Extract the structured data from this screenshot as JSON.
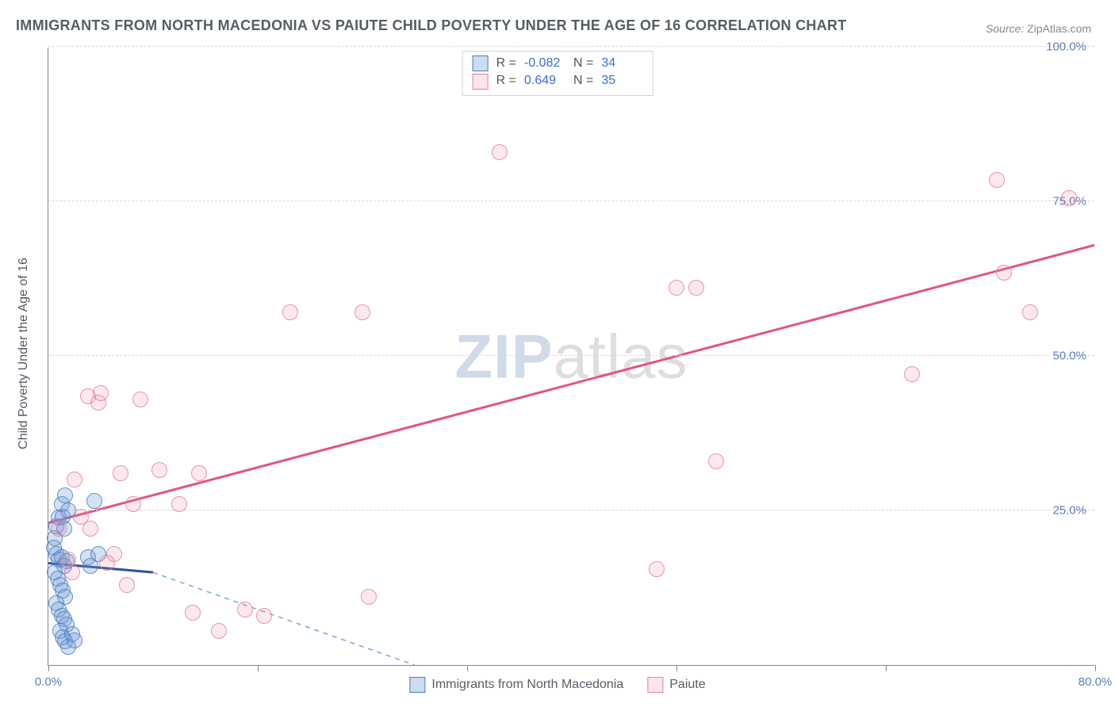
{
  "title": "IMMIGRANTS FROM NORTH MACEDONIA VS PAIUTE CHILD POVERTY UNDER THE AGE OF 16 CORRELATION CHART",
  "source": {
    "label": "Source:",
    "value": "ZipAtlas.com"
  },
  "watermark": {
    "part1": "ZIP",
    "part2": "atlas"
  },
  "y_axis_label": "Child Poverty Under the Age of 16",
  "chart": {
    "type": "scatter",
    "xlim": [
      0,
      80
    ],
    "ylim": [
      0,
      100
    ],
    "x_ticks": [
      0,
      16,
      32,
      48,
      64,
      80
    ],
    "x_tick_labels": {
      "0": "0.0%",
      "80": "80.0%"
    },
    "y_ticks": [
      25,
      50,
      75,
      100
    ],
    "y_tick_labels": {
      "25": "25.0%",
      "50": "50.0%",
      "75": "75.0%",
      "100": "100.0%"
    },
    "grid_color": "#d6d9de",
    "background_color": "#ffffff",
    "axis_color": "#888888",
    "tick_label_color": "#5b7fb8",
    "marker_radius": 10,
    "series": [
      {
        "name": "Immigrants from North Macedonia",
        "key": "blue",
        "R": "-0.082",
        "N": "34",
        "marker_fill": "rgba(108,155,214,0.35)",
        "marker_stroke": "#4e7cc0",
        "trend": {
          "x1": 0,
          "y1": 16.5,
          "x2": 8,
          "y2": 15.0,
          "solid_color": "#2b53a0",
          "solid_width": 3,
          "dash_x2": 28,
          "dash_y2": 0,
          "dash_color": "#7fa3d6",
          "dash_width": 1.5
        },
        "points": [
          [
            0.6,
            22.5
          ],
          [
            0.8,
            23.8
          ],
          [
            1.0,
            26.0
          ],
          [
            1.1,
            24.0
          ],
          [
            1.3,
            27.5
          ],
          [
            1.5,
            25.0
          ],
          [
            1.2,
            22.0
          ],
          [
            0.5,
            20.5
          ],
          [
            0.4,
            19.0
          ],
          [
            0.6,
            18.0
          ],
          [
            0.8,
            17.0
          ],
          [
            1.0,
            17.5
          ],
          [
            1.2,
            16.0
          ],
          [
            1.4,
            16.8
          ],
          [
            0.5,
            15.0
          ],
          [
            0.7,
            14.0
          ],
          [
            0.9,
            13.0
          ],
          [
            1.1,
            12.0
          ],
          [
            1.3,
            11.0
          ],
          [
            0.6,
            10.0
          ],
          [
            0.8,
            9.0
          ],
          [
            1.0,
            8.0
          ],
          [
            1.2,
            7.5
          ],
          [
            1.4,
            6.5
          ],
          [
            0.9,
            5.5
          ],
          [
            1.1,
            4.5
          ],
          [
            1.3,
            3.8
          ],
          [
            1.5,
            3.0
          ],
          [
            1.8,
            5.0
          ],
          [
            2.0,
            4.0
          ],
          [
            3.0,
            17.5
          ],
          [
            3.2,
            16.0
          ],
          [
            3.8,
            18.0
          ],
          [
            3.5,
            26.5
          ]
        ]
      },
      {
        "name": "Paiute",
        "key": "pink",
        "R": "0.649",
        "N": "35",
        "marker_fill": "rgba(236,130,160,0.22)",
        "marker_stroke": "#e2839f",
        "trend": {
          "x1": 0,
          "y1": 23.0,
          "x2": 80,
          "y2": 68.0,
          "solid_color": "#e0567e",
          "solid_width": 3
        },
        "points": [
          [
            0.8,
            22.0
          ],
          [
            1.5,
            17.0
          ],
          [
            1.8,
            15.0
          ],
          [
            3.0,
            43.5
          ],
          [
            3.8,
            42.5
          ],
          [
            4.0,
            44.0
          ],
          [
            5.5,
            31.0
          ],
          [
            6.5,
            26.0
          ],
          [
            4.5,
            16.5
          ],
          [
            7.0,
            43.0
          ],
          [
            8.5,
            31.5
          ],
          [
            10.0,
            26.0
          ],
          [
            11.5,
            31.0
          ],
          [
            11.0,
            8.5
          ],
          [
            13.0,
            5.5
          ],
          [
            15.0,
            9.0
          ],
          [
            16.5,
            8.0
          ],
          [
            18.5,
            57.0
          ],
          [
            24.0,
            57.0
          ],
          [
            24.5,
            11.0
          ],
          [
            34.5,
            83.0
          ],
          [
            46.5,
            15.5
          ],
          [
            48.0,
            61.0
          ],
          [
            49.5,
            61.0
          ],
          [
            51.0,
            33.0
          ],
          [
            66.0,
            47.0
          ],
          [
            72.5,
            78.5
          ],
          [
            73.0,
            63.5
          ],
          [
            75.0,
            57.0
          ],
          [
            78.0,
            75.5
          ],
          [
            2.5,
            24.0
          ],
          [
            3.2,
            22.0
          ],
          [
            5.0,
            18.0
          ],
          [
            6.0,
            13.0
          ],
          [
            2.0,
            30.0
          ]
        ]
      }
    ]
  },
  "legend_top": {
    "r_label": "R =",
    "n_label": "N ="
  },
  "legend_bottom": {
    "items": [
      {
        "key": "blue",
        "label": "Immigrants from North Macedonia"
      },
      {
        "key": "pink",
        "label": "Paiute"
      }
    ]
  }
}
